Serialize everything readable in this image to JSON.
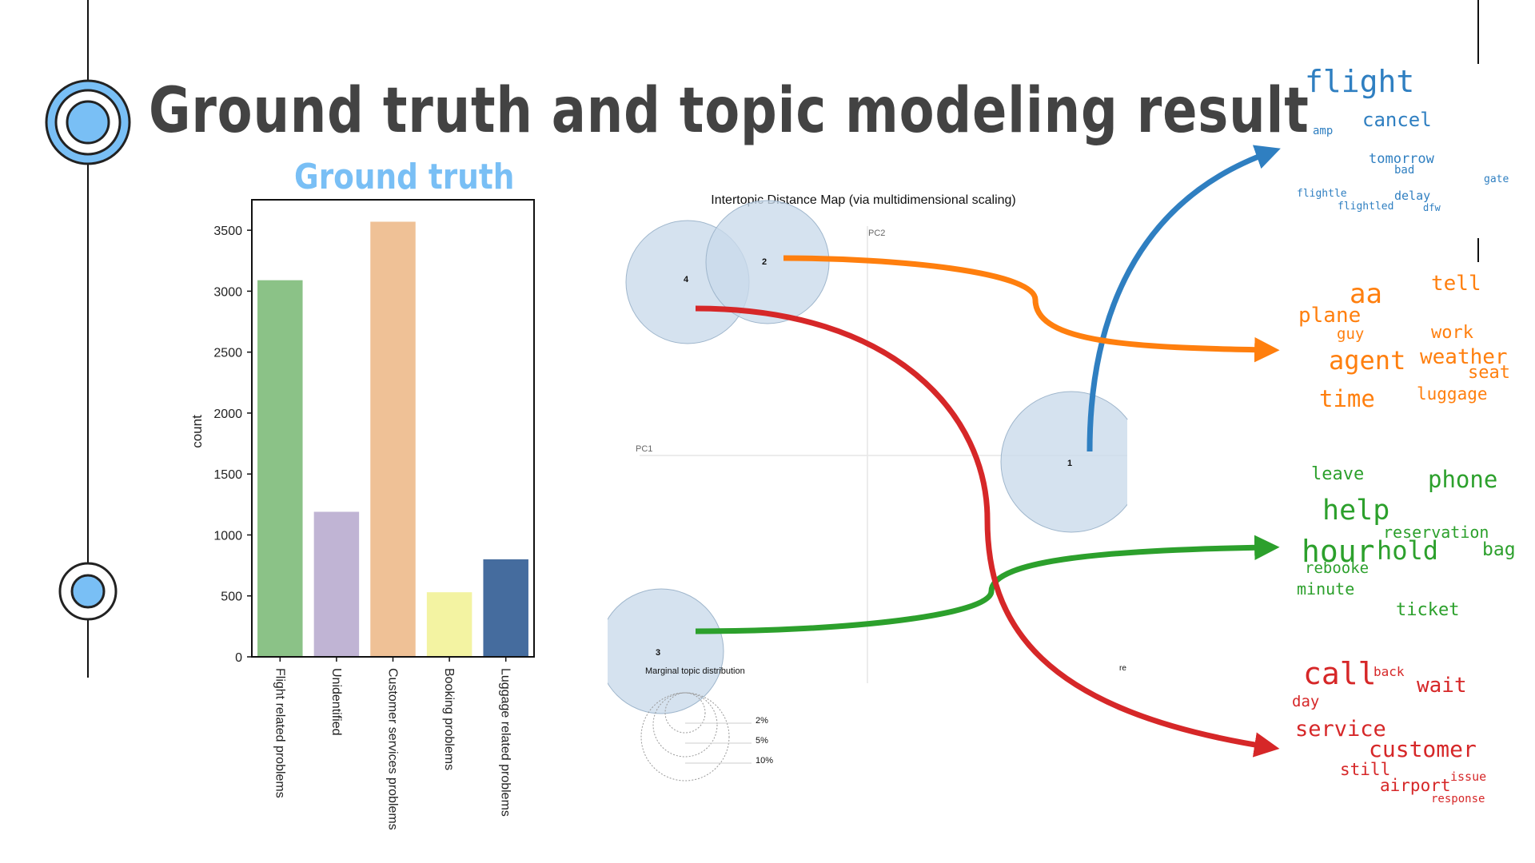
{
  "slide": {
    "title": "Ground truth and topic modeling result",
    "ground_truth_title": "Ground truth"
  },
  "colors": {
    "accent_blue": "#79bff5",
    "title_gray": "#434343",
    "topic_blue": "#2f7fc1",
    "topic_orange": "#ff7f0e",
    "topic_green": "#2ca02c",
    "topic_red": "#d62728",
    "bubble_fill": "#c9daea"
  },
  "chart_data": {
    "type": "bar",
    "ylabel": "count",
    "ylim": [
      0,
      3750
    ],
    "yticks": [
      0,
      500,
      1000,
      1500,
      2000,
      2500,
      3000,
      3500
    ],
    "categories": [
      "Flight related problems",
      "Unidentified",
      "Customer services problems",
      "Booking problems",
      "Luggage related problems"
    ],
    "values": [
      3090,
      1190,
      3570,
      530,
      800
    ],
    "bar_colors": [
      "#8bc287",
      "#c0b4d4",
      "#efc196",
      "#f3f3a2",
      "#456c9e"
    ]
  },
  "intertopic_map": {
    "title": "Intertopic Distance Map (via multidimensional scaling)",
    "axis_pc1": "PC1",
    "axis_pc2": "PC2",
    "topics": [
      {
        "id": "1",
        "label": "1"
      },
      {
        "id": "2",
        "label": "2"
      },
      {
        "id": "3",
        "label": "3"
      },
      {
        "id": "4",
        "label": "4"
      }
    ],
    "stray_text": "re",
    "legend_title": "Marginal topic distribution",
    "legend_values": [
      "2%",
      "5%",
      "10%"
    ]
  },
  "word_clouds": {
    "blue": [
      "flight",
      "cancel",
      "amp",
      "tomorrow",
      "bad",
      "gate",
      "flightle",
      "delay",
      "flightled",
      "dfw"
    ],
    "orange": [
      "aa",
      "tell",
      "plane",
      "guy",
      "work",
      "agent",
      "weather",
      "seat",
      "time",
      "luggage"
    ],
    "green": [
      "leave",
      "phone",
      "help",
      "reservation",
      "hour",
      "hold",
      "bag",
      "rebooke",
      "minute",
      "ticket"
    ],
    "red": [
      "call",
      "back",
      "wait",
      "day",
      "service",
      "customer",
      "still",
      "issue",
      "airport",
      "response"
    ]
  }
}
